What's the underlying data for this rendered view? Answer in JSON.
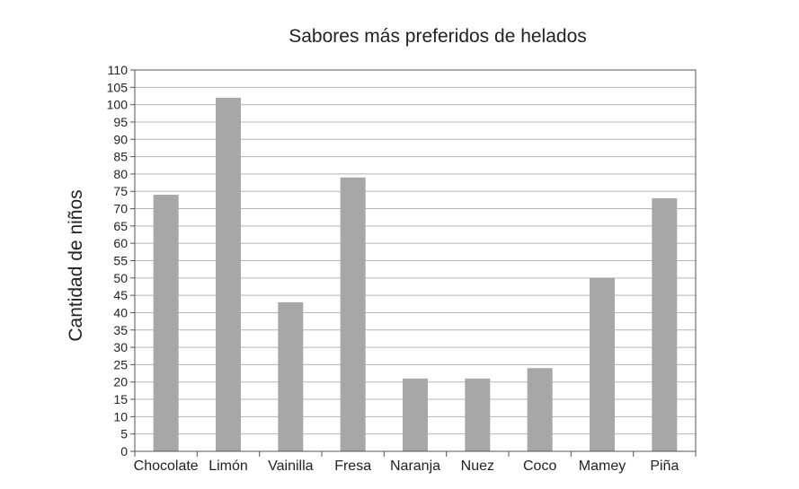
{
  "chart_data": {
    "type": "bar",
    "title": "Sabores más preferidos de helados",
    "xlabel": "",
    "ylabel": "Cantidad de niños",
    "categories": [
      "Chocolate",
      "Limón",
      "Vainilla",
      "Fresa",
      "Naranja",
      "Nuez",
      "Coco",
      "Mamey",
      "Piña"
    ],
    "values": [
      74,
      102,
      43,
      79,
      21,
      21,
      24,
      50,
      73
    ],
    "ylim": [
      0,
      110
    ],
    "yticks": [
      0,
      5,
      10,
      15,
      20,
      25,
      30,
      35,
      40,
      45,
      50,
      55,
      60,
      65,
      70,
      75,
      80,
      85,
      90,
      95,
      100,
      105,
      110
    ],
    "grid": true,
    "legend": "none",
    "colors": {
      "bar": "#a7a7a9",
      "grid": "#b5b5b5",
      "axis": "#555555",
      "text": "#222222"
    }
  }
}
